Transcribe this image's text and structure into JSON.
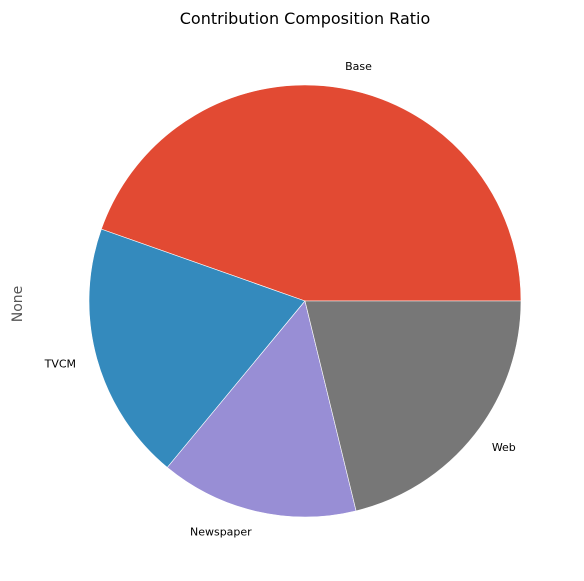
{
  "chart_data": {
    "type": "pie",
    "title": "Contribution Composition Ratio",
    "ylabel": "None",
    "xlabel": "",
    "categories": [
      "Base",
      "TVCM",
      "Newspaper",
      "Web"
    ],
    "values": [
      44.6,
      19.4,
      14.8,
      21.2
    ],
    "colors": [
      "#E24A33",
      "#348ABD",
      "#988ED5",
      "#777777"
    ],
    "start_angle_deg": 0,
    "direction": "counterclockwise",
    "legend": "none"
  }
}
